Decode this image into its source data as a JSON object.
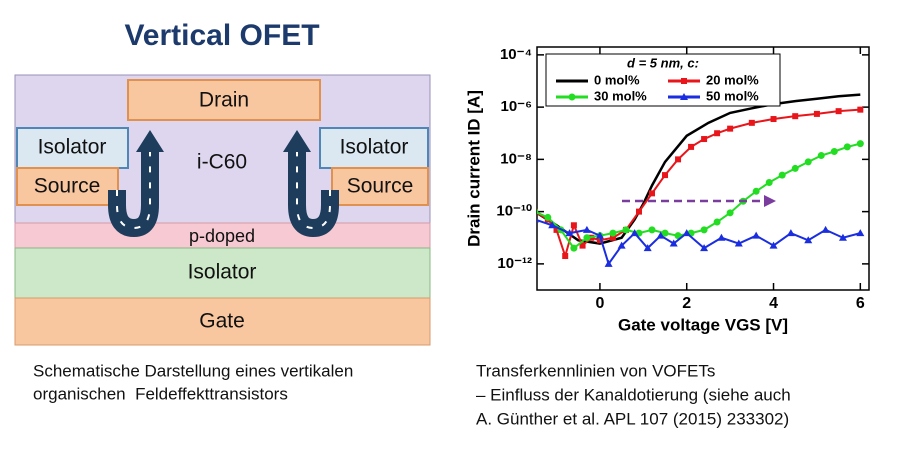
{
  "diagram": {
    "title": "Vertical OFET",
    "labels": {
      "drain": "Drain",
      "isolator_left": "Isolator",
      "source_left": "Source",
      "channel": "i-C60",
      "isolator_right": "Isolator",
      "source_right": "Source",
      "p_doped": "p-doped",
      "isolator": "Isolator",
      "gate": "Gate"
    },
    "caption": [
      "Schematische Darstellung eines vertikalen",
      "organischen  Feldeffekttransistors"
    ]
  },
  "chart_data": {
    "type": "line",
    "log_y": true,
    "xlabel": "Gate voltage VGS [V]",
    "ylabel": "Drain current ID [A]",
    "legend_title": "d = 5 nm, c:",
    "xlim": [
      -1.45,
      6.2
    ],
    "xticks": [
      0,
      2,
      4,
      6
    ],
    "ylim": [
      1e-13,
      0.0002
    ],
    "yticks": [
      {
        "value": 1e-12,
        "label": "10⁻¹²"
      },
      {
        "value": 1e-10,
        "label": "10⁻¹⁰"
      },
      {
        "value": 1e-08,
        "label": "10⁻⁸"
      },
      {
        "value": 1e-06,
        "label": "10⁻⁶"
      },
      {
        "value": 0.0001,
        "label": "10⁻⁴"
      }
    ],
    "series": [
      {
        "name": "0 mol%",
        "color": "#000000",
        "marker": "none",
        "x": [
          -1.5,
          -1,
          -0.5,
          0,
          0.5,
          0.8,
          1,
          1.2,
          1.5,
          2,
          2.5,
          3,
          3.5,
          4,
          4.5,
          5,
          5.5,
          6
        ],
        "values": [
          1e-10,
          3e-11,
          8e-12,
          6e-12,
          1e-11,
          5e-11,
          2e-10,
          1e-09,
          8e-09,
          8e-08,
          2.5e-07,
          6e-07,
          9e-07,
          1.3e-06,
          1.7e-06,
          2.1e-06,
          2.6e-06,
          3e-06
        ]
      },
      {
        "name": "20 mol%",
        "color": "#e8161b",
        "marker": "square",
        "x": [
          -1.5,
          -1.2,
          -1,
          -0.8,
          -0.6,
          -0.4,
          -0.2,
          0,
          0.3,
          0.6,
          0.9,
          1.2,
          1.5,
          1.8,
          2.1,
          2.4,
          2.7,
          3,
          3.5,
          4,
          4.5,
          5,
          5.5,
          6
        ],
        "values": [
          1e-10,
          5e-11,
          2e-11,
          2e-12,
          3e-11,
          5e-12,
          1e-11,
          8e-12,
          1e-11,
          2e-11,
          1e-10,
          5e-10,
          2.5e-09,
          1e-08,
          3e-08,
          6e-08,
          1e-07,
          1.5e-07,
          2.5e-07,
          3.5e-07,
          4.5e-07,
          5.5e-07,
          7e-07,
          8e-07
        ]
      },
      {
        "name": "30 mol%",
        "color": "#22dd22",
        "marker": "circle",
        "x": [
          -1.5,
          -1.2,
          -0.9,
          -0.6,
          -0.3,
          0,
          0.3,
          0.6,
          0.9,
          1.2,
          1.5,
          1.8,
          2.1,
          2.4,
          2.7,
          3,
          3.3,
          3.6,
          3.9,
          4.2,
          4.5,
          4.8,
          5.1,
          5.4,
          5.7,
          6
        ],
        "values": [
          1e-10,
          6e-11,
          2e-11,
          4e-12,
          1e-11,
          1.2e-11,
          1.5e-11,
          2e-11,
          1.5e-11,
          2e-11,
          1.5e-11,
          1.2e-11,
          1.5e-11,
          2e-11,
          4e-11,
          9e-11,
          2.5e-10,
          6e-10,
          1.3e-09,
          2.5e-09,
          4.5e-09,
          8e-09,
          1.4e-08,
          2e-08,
          3e-08,
          4e-08
        ]
      },
      {
        "name": "50 mol%",
        "color": "#1a2ee0",
        "marker": "triangle",
        "x": [
          -1.5,
          -1.1,
          -0.7,
          -0.3,
          0,
          0.2,
          0.5,
          0.8,
          1.1,
          1.4,
          1.7,
          2,
          2.4,
          2.8,
          3.2,
          3.6,
          4,
          4.4,
          4.8,
          5.2,
          5.6,
          6
        ],
        "values": [
          5e-11,
          3e-11,
          1.5e-11,
          2e-11,
          1.2e-11,
          1e-12,
          5e-12,
          1.5e-11,
          4e-12,
          1.2e-11,
          6e-12,
          1.5e-11,
          4e-12,
          1e-11,
          6e-12,
          1.2e-11,
          5e-12,
          1.5e-11,
          8e-12,
          2e-11,
          1e-11,
          1.5e-11
        ]
      }
    ],
    "caption": [
      "Transferkennlinien von VOFETs",
      "– Einfluss der Kanaldotierung (siehe auch",
      "A. Günther et al. APL 107 (2015) 233302)"
    ]
  }
}
